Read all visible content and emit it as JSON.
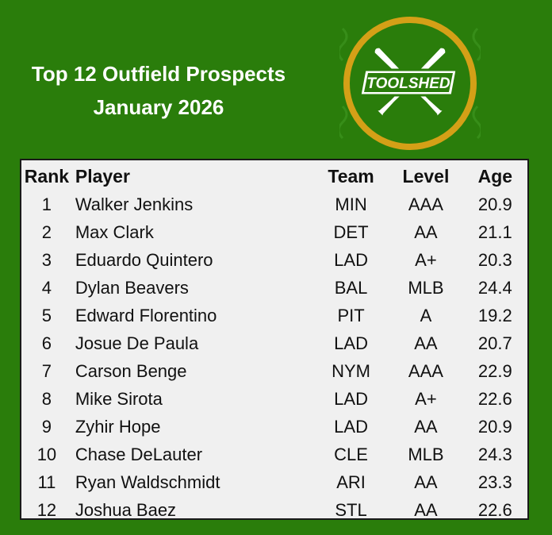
{
  "title": {
    "line1": "Top 12 Outfield Prospects",
    "line2": "January 2026"
  },
  "logo": {
    "text": "TOOLSHED",
    "icon": "crossed-bats-icon",
    "colors": {
      "ring": "#d4a017",
      "fill": "#2a7d0b",
      "bats": "#ffffff"
    }
  },
  "table": {
    "headers": [
      "Rank",
      "Player",
      "Team",
      "Level",
      "Age"
    ],
    "rows": [
      {
        "rank": "1",
        "player": "Walker Jenkins",
        "team": "MIN",
        "level": "AAA",
        "age": "20.9"
      },
      {
        "rank": "2",
        "player": "Max Clark",
        "team": "DET",
        "level": "AA",
        "age": "21.1"
      },
      {
        "rank": "3",
        "player": "Eduardo Quintero",
        "team": "LAD",
        "level": "A+",
        "age": "20.3"
      },
      {
        "rank": "4",
        "player": "Dylan Beavers",
        "team": "BAL",
        "level": "MLB",
        "age": "24.4"
      },
      {
        "rank": "5",
        "player": "Edward Florentino",
        "team": "PIT",
        "level": "A",
        "age": "19.2"
      },
      {
        "rank": "6",
        "player": "Josue De Paula",
        "team": "LAD",
        "level": "AA",
        "age": "20.7"
      },
      {
        "rank": "7",
        "player": "Carson Benge",
        "team": "NYM",
        "level": "AAA",
        "age": "22.9"
      },
      {
        "rank": "8",
        "player": "Mike Sirota",
        "team": "LAD",
        "level": "A+",
        "age": "22.6"
      },
      {
        "rank": "9",
        "player": "Zyhir Hope",
        "team": "LAD",
        "level": "AA",
        "age": "20.9"
      },
      {
        "rank": "10",
        "player": "Chase DeLauter",
        "team": "CLE",
        "level": "MLB",
        "age": "24.3"
      },
      {
        "rank": "11",
        "player": "Ryan Waldschmidt",
        "team": "ARI",
        "level": "AA",
        "age": "23.3"
      },
      {
        "rank": "12",
        "player": "Joshua Baez",
        "team": "STL",
        "level": "AA",
        "age": "22.6"
      }
    ]
  },
  "colors": {
    "background": "#2a7d0b",
    "panel": "#f0f0f0"
  }
}
